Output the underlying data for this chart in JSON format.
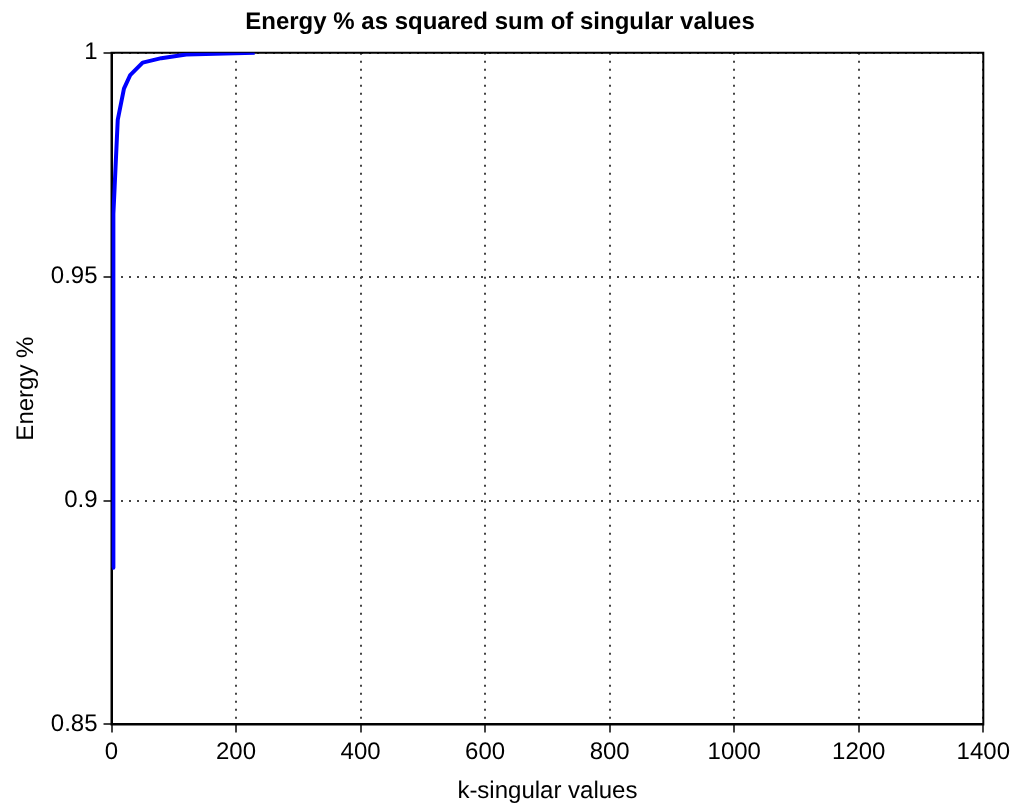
{
  "chart_data": {
    "type": "line",
    "title": "Energy % as squared sum of singular values",
    "xlabel": "k-singular values",
    "ylabel": "Energy %",
    "x": [
      1,
      3,
      5,
      10,
      20,
      30,
      50,
      80,
      120,
      230
    ],
    "series": [
      {
        "color": "#0000ff",
        "values": [
          0.885,
          0.964,
          0.97,
          0.985,
          0.992,
          0.995,
          0.9978,
          0.9988,
          0.9996,
          1.0
        ]
      }
    ],
    "xlim": [
      0,
      1400
    ],
    "xticks": [
      0,
      200,
      400,
      600,
      800,
      1000,
      1200,
      1400
    ],
    "ylim": [
      0.85,
      1
    ],
    "yticks": [
      0.85,
      {
        "value": 0.9,
        "label": "0.9"
      },
      0.95,
      {
        "value": 1,
        "label": "1"
      }
    ],
    "grid": true,
    "legend": false,
    "marker": "none",
    "line_style": "solid"
  }
}
